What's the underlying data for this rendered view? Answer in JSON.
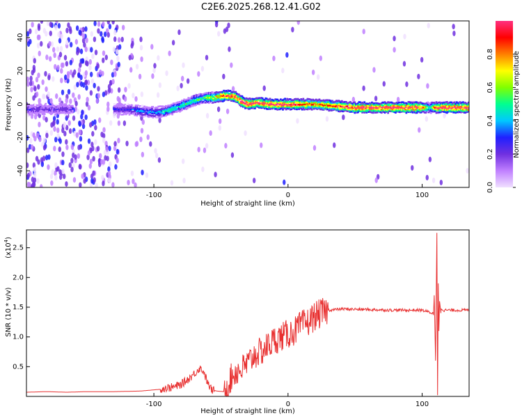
{
  "title": "C2E6.2025.268.12.41.G02",
  "chart_data": [
    {
      "type": "heatmap",
      "name": "spectrogram",
      "xlabel": "Height of straight line (km)",
      "ylabel": "Frequency (Hz)",
      "xlim": [
        -195,
        135
      ],
      "ylim": [
        -50,
        50
      ],
      "xticks": [
        "-100",
        "0",
        "100"
      ],
      "xtick_values": [
        -100,
        0,
        100
      ],
      "yticks": [
        "-40",
        "-20",
        "0",
        "20",
        "40"
      ],
      "ytick_values": [
        -40,
        -20,
        0,
        20,
        40
      ],
      "colorbar": {
        "label": "Normalized spectral amplitude",
        "ticks": [
          "0.0",
          "0.2",
          "0.4",
          "0.6",
          "0.8"
        ],
        "tick_values": [
          0.0,
          0.2,
          0.4,
          0.6,
          0.8
        ],
        "range": [
          0,
          1
        ],
        "colors": [
          "#f0e0ff",
          "#c080ff",
          "#7030e0",
          "#2020ff",
          "#00c8ff",
          "#00ff90",
          "#80ff00",
          "#ffff00",
          "#ff8000",
          "#ff0000",
          "#ff3080"
        ]
      },
      "ridge": {
        "x": [
          -180,
          -165,
          -120,
          -110,
          -100,
          -90,
          -80,
          -70,
          -62,
          -55,
          -48,
          -40,
          -35,
          -30,
          -22,
          -15,
          0,
          20,
          50,
          80,
          100,
          106,
          110,
          120,
          135
        ],
        "y": [
          -3,
          -3,
          -3,
          -4,
          -5,
          -4,
          -1,
          2,
          4,
          4,
          5,
          5,
          2,
          0,
          1,
          0,
          0,
          0,
          -2,
          -2,
          -2,
          -2,
          -2,
          -2,
          -2
        ],
        "amplitude": [
          0.25,
          0.25,
          0.3,
          0.4,
          0.4,
          0.5,
          0.5,
          0.55,
          0.55,
          0.7,
          0.9,
          0.95,
          0.95,
          0.95,
          0.95,
          0.95,
          0.95,
          0.8,
          0.95,
          0.95,
          0.95,
          0.5,
          0.95,
          0.95,
          0.95
        ]
      }
    },
    {
      "type": "line",
      "name": "snr",
      "xlabel": "Height of straight line (km)",
      "ylabel": "SNR (10 * v/v)",
      "y_multiplier": "(x10",
      "y_multiplier_exp": "4",
      "y_multiplier_close": ")",
      "xlim": [
        -195,
        135
      ],
      "ylim": [
        0,
        2.8
      ],
      "xticks": [
        "-100",
        "0",
        "100"
      ],
      "xtick_values": [
        -100,
        0,
        100
      ],
      "yticks": [
        "0.5",
        "1.0",
        "1.5",
        "2.0",
        "2.5"
      ],
      "ytick_values": [
        0.5,
        1.0,
        1.5,
        2.0,
        2.5
      ],
      "color": "#e83030",
      "series": [
        {
          "name": "SNR",
          "x": [
            -195,
            -180,
            -165,
            -150,
            -130,
            -110,
            -95,
            -85,
            -80,
            -75,
            -70,
            -66,
            -63,
            -60,
            -57,
            -53,
            -48,
            -45,
            -40,
            -35,
            -30,
            -25,
            -20,
            -15,
            -10,
            -5,
            0,
            5,
            10,
            15,
            20,
            25,
            30,
            35,
            40,
            60,
            80,
            100,
            108,
            111,
            113,
            116,
            120,
            135
          ],
          "y": [
            0.05,
            0.06,
            0.05,
            0.06,
            0.06,
            0.07,
            0.1,
            0.13,
            0.17,
            0.25,
            0.35,
            0.45,
            0.4,
            0.2,
            0.08,
            0.06,
            0.05,
            0.2,
            0.4,
            0.45,
            0.55,
            0.7,
            0.75,
            0.85,
            0.95,
            1.0,
            1.05,
            1.1,
            1.2,
            1.25,
            1.35,
            1.4,
            1.45,
            1.46,
            1.47,
            1.46,
            1.45,
            1.45,
            1.4,
            1.2,
            1.5,
            1.45,
            1.45,
            1.45
          ]
        }
      ],
      "spike": {
        "x": [
          109,
          110,
          111,
          111.5,
          112,
          112.5,
          113,
          114
        ],
        "y": [
          1.7,
          0.6,
          2.75,
          0.02,
          1.9,
          1.1,
          1.6,
          1.4
        ]
      }
    }
  ]
}
